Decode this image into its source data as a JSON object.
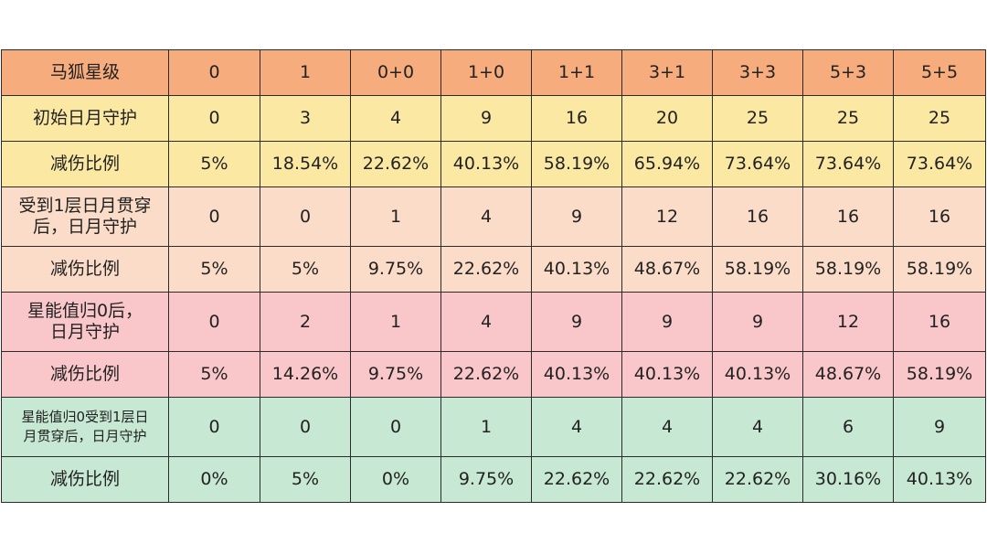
{
  "colors": {
    "header": "#f6ac7c",
    "yellow": "#fbe8a2",
    "peach": "#fbdcc8",
    "pink": "#f9c6c9",
    "green": "#c7e8d2",
    "border": "#2b2b2b"
  },
  "table": {
    "rows": [
      {
        "label": "马狐星级",
        "cells": [
          "0",
          "1",
          "0+0",
          "1+0",
          "1+1",
          "3+1",
          "3+3",
          "5+3",
          "5+5"
        ]
      },
      {
        "label": "初始日月守护",
        "cells": [
          "0",
          "3",
          "4",
          "9",
          "16",
          "20",
          "25",
          "25",
          "25"
        ]
      },
      {
        "label": "减伤比例",
        "cells": [
          "5%",
          "18.54%",
          "22.62%",
          "40.13%",
          "58.19%",
          "65.94%",
          "73.64%",
          "73.64%",
          "73.64%"
        ]
      },
      {
        "label_lines": [
          "受到1层日月贯穿",
          "后，日月守护"
        ],
        "cells": [
          "0",
          "0",
          "1",
          "4",
          "9",
          "12",
          "16",
          "16",
          "16"
        ]
      },
      {
        "label": "减伤比例",
        "cells": [
          "5%",
          "5%",
          "9.75%",
          "22.62%",
          "40.13%",
          "48.67%",
          "58.19%",
          "58.19%",
          "58.19%"
        ]
      },
      {
        "label_lines": [
          "星能值归0后，",
          "日月守护"
        ],
        "cells": [
          "0",
          "2",
          "1",
          "4",
          "9",
          "9",
          "9",
          "12",
          "16"
        ]
      },
      {
        "label": "减伤比例",
        "cells": [
          "5%",
          "14.26%",
          "9.75%",
          "22.62%",
          "40.13%",
          "40.13%",
          "40.13%",
          "48.67%",
          "58.19%"
        ]
      },
      {
        "label_lines": [
          "星能值归0受到1层日",
          "月贯穿后，日月守护"
        ],
        "cells": [
          "0",
          "0",
          "0",
          "1",
          "4",
          "4",
          "4",
          "6",
          "9"
        ]
      },
      {
        "label": "减伤比例",
        "cells": [
          "0%",
          "5%",
          "0%",
          "9.75%",
          "22.62%",
          "22.62%",
          "22.62%",
          "30.16%",
          "40.13%"
        ]
      }
    ]
  }
}
